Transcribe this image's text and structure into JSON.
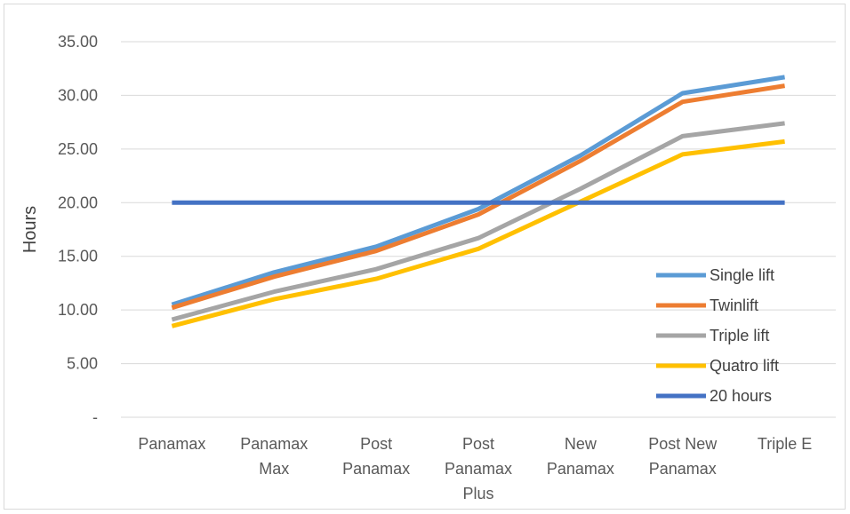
{
  "chart_data": {
    "type": "line",
    "title": "",
    "xlabel": "",
    "ylabel": "Hours",
    "ylim": [
      0,
      35
    ],
    "y_ticks": [
      {
        "value": 0,
        "label": "-"
      },
      {
        "value": 5,
        "label": "5.00"
      },
      {
        "value": 10,
        "label": "10.00"
      },
      {
        "value": 15,
        "label": "15.00"
      },
      {
        "value": 20,
        "label": "20.00"
      },
      {
        "value": 25,
        "label": "25.00"
      },
      {
        "value": 30,
        "label": "30.00"
      },
      {
        "value": 35,
        "label": "35.00"
      }
    ],
    "grid": true,
    "legend_position": "bottom-right",
    "categories": [
      [
        "Panamax"
      ],
      [
        "Panamax",
        "Max"
      ],
      [
        "Post",
        "Panamax"
      ],
      [
        "Post",
        "Panamax",
        "Plus"
      ],
      [
        "New",
        "Panamax"
      ],
      [
        "Post New",
        "Panamax"
      ],
      [
        "Triple E"
      ]
    ],
    "series": [
      {
        "name": "Single lift",
        "color": "#5b9bd5",
        "values": [
          10.5,
          13.5,
          15.9,
          19.4,
          24.4,
          30.2,
          31.7
        ]
      },
      {
        "name": "Twinlift",
        "color": "#ed7d31",
        "values": [
          10.2,
          13.1,
          15.5,
          18.9,
          23.9,
          29.4,
          30.9
        ]
      },
      {
        "name": "Triple lift",
        "color": "#a5a5a5",
        "values": [
          9.1,
          11.7,
          13.8,
          16.7,
          21.3,
          26.2,
          27.4
        ]
      },
      {
        "name": "Quatro lift",
        "color": "#ffc000",
        "values": [
          8.5,
          11.0,
          12.9,
          15.7,
          20.1,
          24.5,
          25.7
        ]
      },
      {
        "name": "20 hours",
        "color": "#4472c4",
        "values": [
          20,
          20,
          20,
          20,
          20,
          20,
          20
        ]
      }
    ]
  }
}
